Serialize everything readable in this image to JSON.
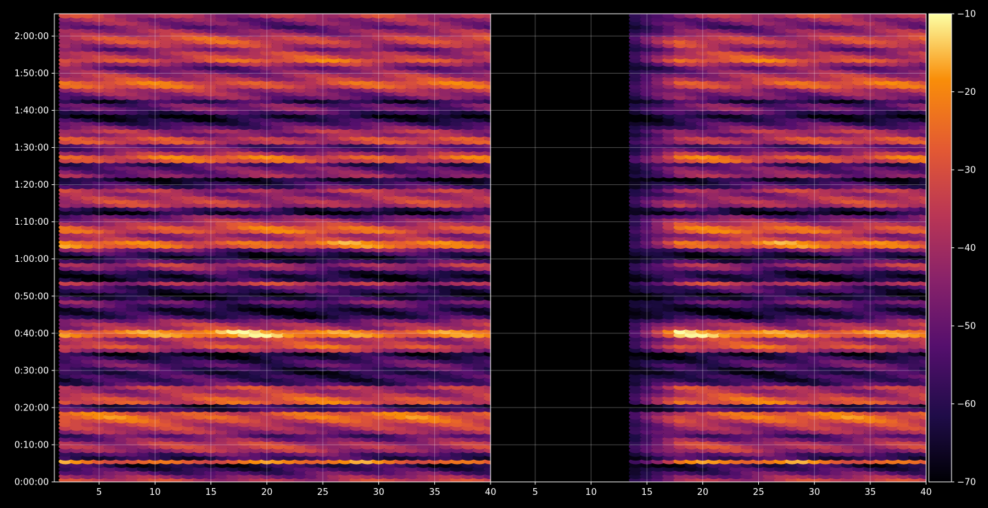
{
  "chart_data": {
    "type": "heatmap",
    "title": "",
    "colormap": "inferno",
    "background": "#000000",
    "grid": true,
    "y_axis": {
      "range_seconds": [
        0,
        7560
      ],
      "tick_labels": [
        "0:00:00",
        "0:10:00",
        "0:20:00",
        "0:30:00",
        "0:40:00",
        "0:50:00",
        "1:00:00",
        "1:10:00",
        "1:20:00",
        "1:30:00",
        "1:40:00",
        "1:50:00",
        "2:00:00"
      ]
    },
    "panels": [
      {
        "name": "",
        "xlim": [
          1,
          40
        ],
        "x_ticks": [
          "5",
          "10",
          "15",
          "20",
          "25",
          "30",
          "35",
          "40"
        ],
        "x_filled_from": 2
      },
      {
        "name": "",
        "xlim": [
          1,
          40
        ],
        "x_ticks": [
          "5",
          "10",
          "15",
          "20",
          "25",
          "30",
          "35",
          "40"
        ],
        "x_filled_from": 14
      }
    ],
    "colorbar": {
      "range": [
        -70,
        -10
      ],
      "tick_labels": [
        "−10",
        "−20",
        "−30",
        "−40",
        "−50",
        "−60",
        "−70"
      ],
      "tick_values": [
        -10,
        -20,
        -30,
        -40,
        -50,
        -60,
        -70
      ]
    },
    "intensity_profile": {
      "time_minutes": [
        0,
        1,
        2,
        3,
        4,
        5,
        6,
        7,
        8,
        9,
        10,
        11,
        12,
        13,
        14,
        15,
        16,
        17,
        18,
        19,
        20,
        21,
        22,
        23,
        24,
        25,
        26,
        27,
        28,
        29,
        30,
        31,
        32,
        33,
        34,
        35,
        36,
        37,
        38,
        39,
        40,
        41,
        42,
        43,
        44,
        45,
        46,
        47,
        48,
        49,
        50,
        51,
        52,
        53,
        54,
        55,
        56,
        57,
        58,
        59,
        60,
        61,
        62,
        63,
        64,
        65,
        66,
        67,
        68,
        69,
        70,
        71,
        72,
        73,
        74,
        75,
        76,
        77,
        78,
        79,
        80,
        81,
        82,
        83,
        84,
        85,
        86,
        87,
        88,
        89,
        90,
        91,
        92,
        93,
        94,
        95,
        96,
        97,
        98,
        99,
        100,
        101,
        102,
        103,
        104,
        105,
        106,
        107,
        108,
        109,
        110,
        111,
        112,
        113,
        114,
        115,
        116,
        117,
        118,
        119,
        120,
        121,
        122,
        123,
        124,
        125
      ],
      "db_value": [
        -36,
        -44,
        -52,
        -58,
        -62,
        -24,
        -58,
        -52,
        -40,
        -36,
        -38,
        -46,
        -52,
        -42,
        -38,
        -36,
        -30,
        -26,
        -28,
        -56,
        -60,
        -28,
        -30,
        -36,
        -40,
        -36,
        -54,
        -58,
        -58,
        -62,
        -58,
        -52,
        -56,
        -62,
        -66,
        -40,
        -30,
        -36,
        -38,
        -20,
        -20,
        -38,
        -40,
        -48,
        -60,
        -64,
        -64,
        -56,
        -50,
        -62,
        -66,
        -58,
        -54,
        -38,
        -62,
        -64,
        -58,
        -46,
        -40,
        -56,
        -66,
        -60,
        -48,
        -26,
        -24,
        -38,
        -40,
        -28,
        -28,
        -36,
        -42,
        -50,
        -66,
        -58,
        -38,
        -36,
        -40,
        -44,
        -38,
        -54,
        -60,
        -66,
        -44,
        -48,
        -50,
        -56,
        -30,
        -26,
        -40,
        -50,
        -52,
        -34,
        -34,
        -44,
        -40,
        -50,
        -56,
        -62,
        -66,
        -56,
        -48,
        -50,
        -60,
        -48,
        -44,
        -40,
        -30,
        -28,
        -36,
        -40,
        -46,
        -50,
        -40,
        -28,
        -34,
        -38,
        -46,
        -38,
        -32,
        -32,
        -40,
        -44,
        -50,
        -46,
        -44,
        -38
      ]
    }
  }
}
